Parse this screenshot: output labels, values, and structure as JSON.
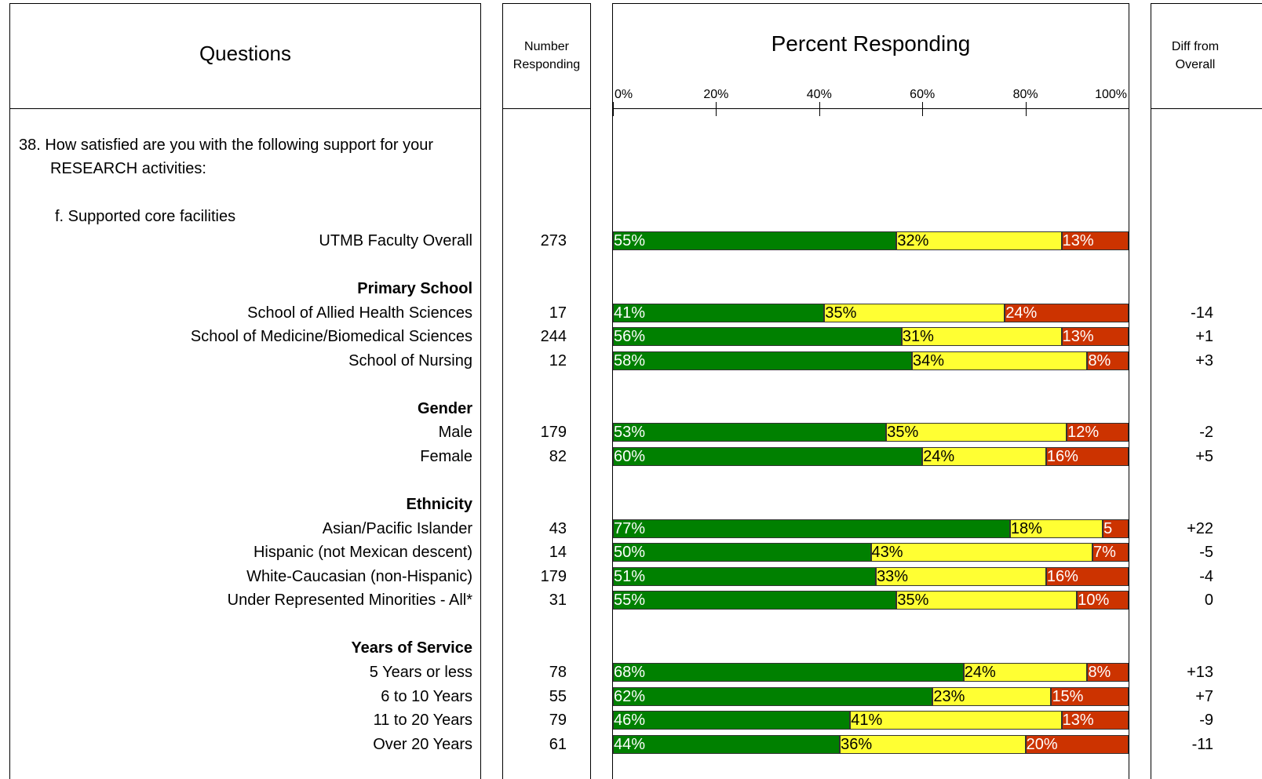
{
  "chart_data": {
    "type": "bar",
    "stacked": true,
    "orientation": "horizontal",
    "title": "Percent Responding",
    "column_headers": {
      "questions": "Questions",
      "number": "Number Responding",
      "diff": "Diff from Overall"
    },
    "question": "38. How satisfied are you with the following support for your RESEARCH activities:",
    "sub_question": "f. Supported core facilities",
    "xlim": [
      0,
      100
    ],
    "xticks": [
      {
        "value": 0,
        "label": "0%"
      },
      {
        "value": 20,
        "label": "20%"
      },
      {
        "value": 40,
        "label": "40%"
      },
      {
        "value": 60,
        "label": "60%"
      },
      {
        "value": 80,
        "label": "80%"
      },
      {
        "value": 100,
        "label": "100%"
      }
    ],
    "groups": [
      {
        "categories": [
          "UTMB Faculty Overall"
        ],
        "number_responding": [
          273
        ],
        "diff_from_overall": [
          null
        ],
        "diff_labels": [
          null
        ],
        "series": [
          {
            "color": "#008000",
            "label_color": "#ffffff",
            "values": [
              55
            ],
            "value_labels": [
              "55%"
            ]
          },
          {
            "color": "#ffff33",
            "label_color": "#000000",
            "values": [
              32
            ],
            "value_labels": [
              "32%"
            ]
          },
          {
            "color": "#cc3300",
            "label_color": "#ffffff",
            "values": [
              13
            ],
            "value_labels": [
              "13%"
            ]
          }
        ]
      },
      {
        "heading": "Primary School",
        "categories": [
          "School of Allied Health Sciences",
          "School of Medicine/Biomedical Sciences",
          "School of Nursing"
        ],
        "number_responding": [
          17,
          244,
          12
        ],
        "diff_from_overall": [
          -14,
          1,
          3
        ],
        "diff_labels": [
          "-14",
          "+1",
          "+3"
        ],
        "series": [
          {
            "color": "#008000",
            "label_color": "#ffffff",
            "values": [
              41,
              56,
              58
            ],
            "value_labels": [
              "41%",
              "56%",
              "58%"
            ]
          },
          {
            "color": "#ffff33",
            "label_color": "#000000",
            "values": [
              35,
              31,
              34
            ],
            "value_labels": [
              "35%",
              "31%",
              "34%"
            ]
          },
          {
            "color": "#cc3300",
            "label_color": "#ffffff",
            "values": [
              24,
              13,
              8
            ],
            "value_labels": [
              "24%",
              "13%",
              "8%"
            ]
          }
        ]
      },
      {
        "heading": "Gender",
        "categories": [
          "Male",
          "Female"
        ],
        "number_responding": [
          179,
          82
        ],
        "diff_from_overall": [
          -2,
          5
        ],
        "diff_labels": [
          "-2",
          "+5"
        ],
        "series": [
          {
            "color": "#008000",
            "label_color": "#ffffff",
            "values": [
              53,
              60
            ],
            "value_labels": [
              "53%",
              "60%"
            ]
          },
          {
            "color": "#ffff33",
            "label_color": "#000000",
            "values": [
              35,
              24
            ],
            "value_labels": [
              "35%",
              "24%"
            ]
          },
          {
            "color": "#cc3300",
            "label_color": "#ffffff",
            "values": [
              12,
              16
            ],
            "value_labels": [
              "12%",
              "16%"
            ]
          }
        ]
      },
      {
        "heading": "Ethnicity",
        "categories": [
          "Asian/Pacific Islander",
          "Hispanic (not Mexican descent)",
          "White-Caucasian (non-Hispanic)",
          "Under Represented Minorities - All*"
        ],
        "number_responding": [
          43,
          14,
          179,
          31
        ],
        "diff_from_overall": [
          22,
          -5,
          -4,
          0
        ],
        "diff_labels": [
          "+22",
          "-5",
          "-4",
          "0"
        ],
        "series": [
          {
            "color": "#008000",
            "label_color": "#ffffff",
            "values": [
              77,
              50,
              51,
              55
            ],
            "value_labels": [
              "77%",
              "50%",
              "51%",
              "55%"
            ]
          },
          {
            "color": "#ffff33",
            "label_color": "#000000",
            "values": [
              18,
              43,
              33,
              35
            ],
            "value_labels": [
              "18%",
              "43%",
              "33%",
              "35%"
            ]
          },
          {
            "color": "#cc3300",
            "label_color": "#ffffff",
            "values": [
              5,
              7,
              16,
              10
            ],
            "value_labels": [
              "5",
              "7%",
              "16%",
              "10%"
            ]
          }
        ]
      },
      {
        "heading": "Years of Service",
        "categories": [
          "5 Years or less",
          "6 to 10 Years",
          "11 to 20 Years",
          "Over 20 Years"
        ],
        "number_responding": [
          78,
          55,
          79,
          61
        ],
        "diff_from_overall": [
          13,
          7,
          -9,
          -11
        ],
        "diff_labels": [
          "+13",
          "+7",
          "-9",
          "-11"
        ],
        "series": [
          {
            "color": "#008000",
            "label_color": "#ffffff",
            "values": [
              68,
              62,
              46,
              44
            ],
            "value_labels": [
              "68%",
              "62%",
              "46%",
              "44%"
            ]
          },
          {
            "color": "#ffff33",
            "label_color": "#000000",
            "values": [
              24,
              23,
              41,
              36
            ],
            "value_labels": [
              "24%",
              "23%",
              "41%",
              "36%"
            ]
          },
          {
            "color": "#cc3300",
            "label_color": "#ffffff",
            "values": [
              8,
              15,
              13,
              20
            ],
            "value_labels": [
              "8%",
              "15%",
              "13%",
              "20%"
            ]
          }
        ]
      }
    ]
  }
}
